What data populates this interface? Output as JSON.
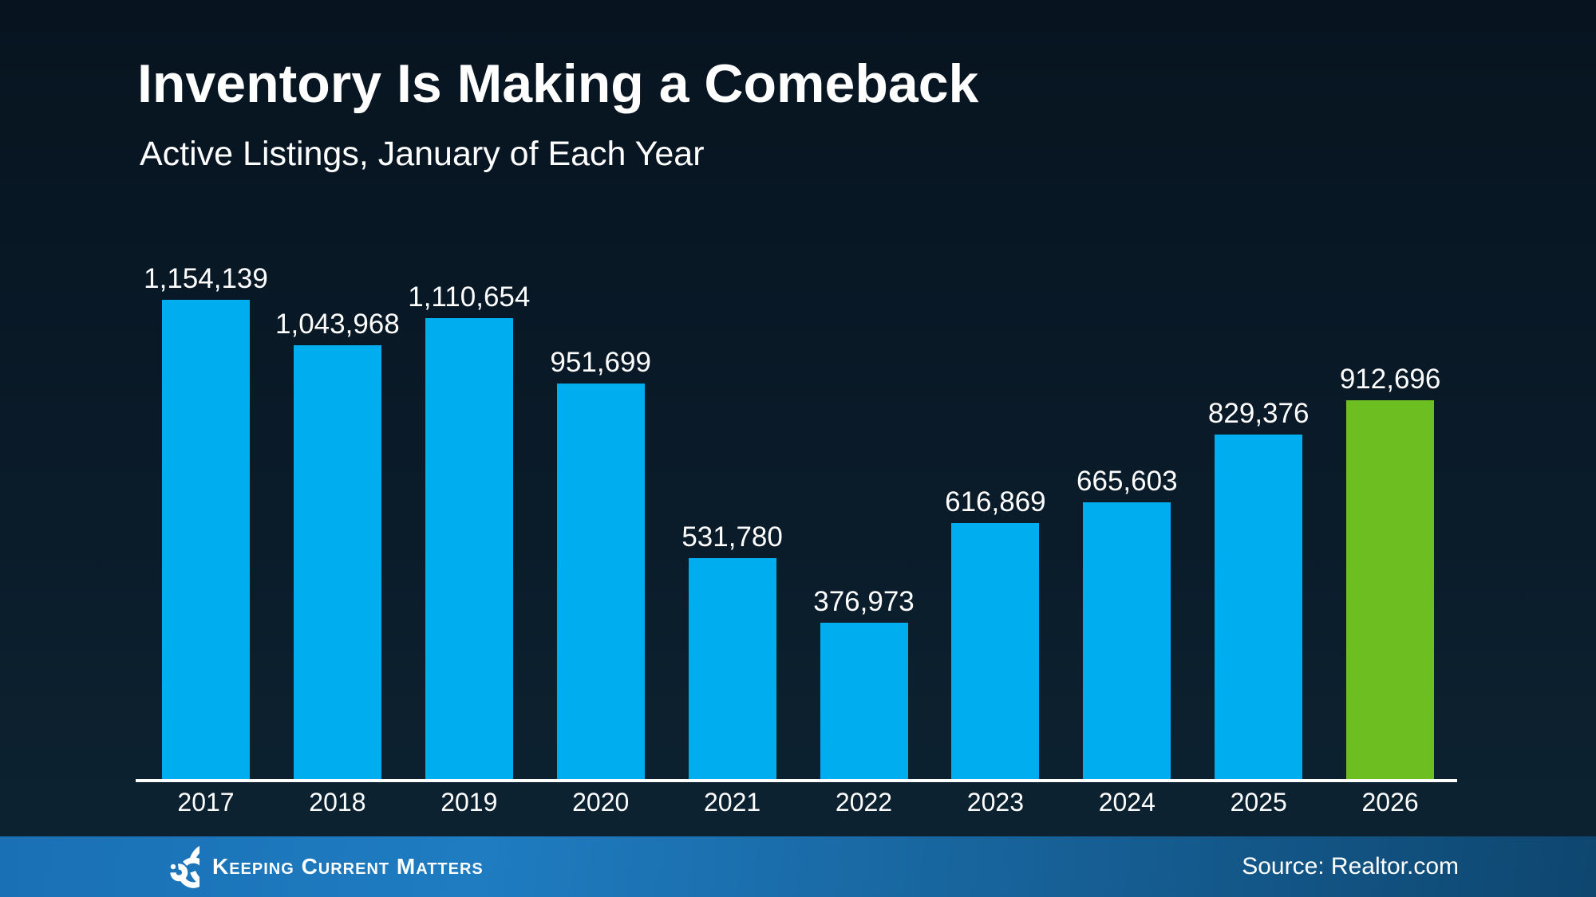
{
  "slide": {
    "title": "Inventory Is Making a Comeback",
    "subtitle": "Active Listings, January of Each Year"
  },
  "chart_data": {
    "type": "bar",
    "title": "Inventory Is Making a Comeback",
    "subtitle": "Active Listings, January of Each Year",
    "categories": [
      "2017",
      "2018",
      "2019",
      "2020",
      "2021",
      "2022",
      "2023",
      "2024",
      "2025",
      "2026"
    ],
    "values": [
      1154139,
      1043968,
      1110654,
      951699,
      531780,
      376973,
      616869,
      665603,
      829376,
      912696
    ],
    "value_labels": [
      "1,154,139",
      "1,043,968",
      "1,110,654",
      "951,699",
      "531,780",
      "376,973",
      "616,869",
      "665,603",
      "829,376",
      "912,696"
    ],
    "xlabel": "",
    "ylabel": "",
    "ylim": [
      0,
      1200000
    ],
    "grid": false,
    "legend": "none",
    "bar_color": "#00AEEF",
    "highlight_color": "#6CBE21",
    "highlight_index": 9,
    "axis_line_color": "#FFFFFF",
    "label_position": "above-bars"
  },
  "footer": {
    "brand": "Keeping Current Matters",
    "logo": "kcm-spiral-logo",
    "source": "Source: Realtor.com",
    "bg_left": "#1A70B4",
    "bg_right": "#0E466F"
  },
  "colors": {
    "background_top": "#071420",
    "background_bottom": "#0D2433",
    "text": "#FFFFFF"
  }
}
